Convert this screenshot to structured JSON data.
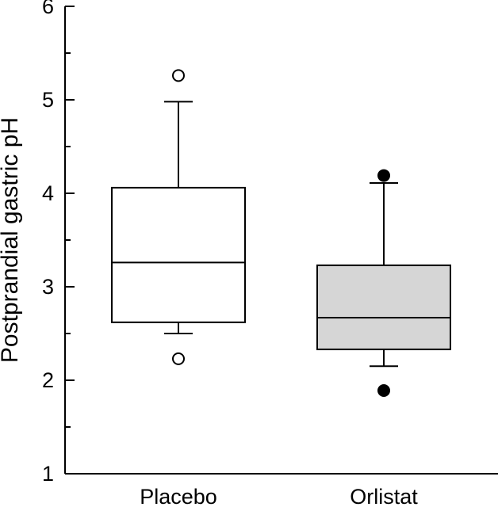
{
  "chart_data": {
    "type": "boxplot",
    "ylabel": "Postprandial gastric pH",
    "xlabel": "",
    "ylim": [
      1,
      6
    ],
    "yticks_major": [
      1,
      2,
      3,
      4,
      5,
      6
    ],
    "yticks_minor": [
      1.5,
      2.5,
      3.5,
      4.5,
      5.5
    ],
    "categories": [
      "Placebo",
      "Orlistat"
    ],
    "grid": false,
    "series": [
      {
        "category": "Placebo",
        "whisker_low": 2.5,
        "q1": 2.62,
        "median": 3.26,
        "q3": 4.06,
        "whisker_high": 4.98,
        "outliers": [
          5.26,
          2.23
        ],
        "box_fill": "#ffffff",
        "outlier_fill": "#ffffff"
      },
      {
        "category": "Orlistat",
        "whisker_low": 2.15,
        "q1": 2.33,
        "median": 2.67,
        "q3": 3.23,
        "whisker_high": 4.11,
        "outliers": [
          4.19,
          1.89
        ],
        "box_fill": "#d6d6d6",
        "outlier_fill": "#000000"
      }
    ]
  }
}
